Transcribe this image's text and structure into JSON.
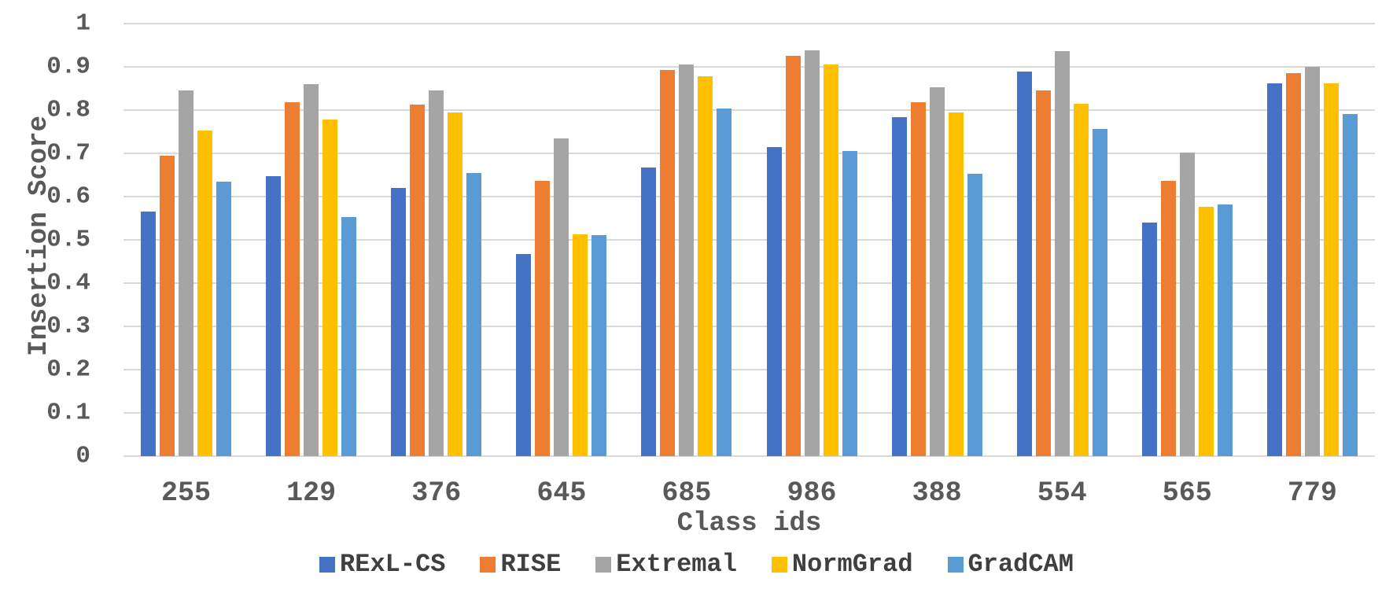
{
  "chart_data": {
    "type": "bar",
    "title": "",
    "xlabel": "Class ids",
    "ylabel": "Insertion Score",
    "categories": [
      "255",
      "129",
      "376",
      "645",
      "685",
      "986",
      "388",
      "554",
      "565",
      "779"
    ],
    "series": [
      {
        "name": "RExL-CS",
        "color": "#4472C4",
        "values": [
          0.565,
          0.648,
          0.62,
          0.468,
          0.667,
          0.715,
          0.783,
          0.889,
          0.54,
          0.862
        ]
      },
      {
        "name": "RISE",
        "color": "#ED7D31",
        "values": [
          0.695,
          0.818,
          0.813,
          0.637,
          0.893,
          0.926,
          0.818,
          0.846,
          0.637,
          0.886
        ]
      },
      {
        "name": "Extremal",
        "color": "#A5A5A5",
        "values": [
          0.845,
          0.86,
          0.845,
          0.735,
          0.906,
          0.938,
          0.853,
          0.936,
          0.702,
          0.9
        ]
      },
      {
        "name": "NormGrad",
        "color": "#FFC000",
        "values": [
          0.752,
          0.779,
          0.795,
          0.513,
          0.878,
          0.905,
          0.795,
          0.815,
          0.576,
          0.862
        ]
      },
      {
        "name": "GradCAM",
        "color": "#5B9BD5",
        "values": [
          0.635,
          0.552,
          0.655,
          0.511,
          0.804,
          0.705,
          0.653,
          0.756,
          0.582,
          0.791
        ]
      }
    ],
    "ylim": [
      0,
      1
    ],
    "yticks": [
      0,
      0.1,
      0.2,
      0.3,
      0.4,
      0.5,
      0.6,
      0.7,
      0.8,
      0.9,
      1
    ],
    "ytick_labels": [
      "0",
      "0.1",
      "0.2",
      "0.3",
      "0.4",
      "0.5",
      "0.6",
      "0.7",
      "0.8",
      "0.9",
      "1"
    ],
    "grid": true,
    "legend_position": "bottom"
  },
  "colors": {
    "gridline": "#D9D9D9",
    "tick_text": "#58595B",
    "legend_text": "#3F3F3F",
    "background": "#FFFFFF"
  }
}
